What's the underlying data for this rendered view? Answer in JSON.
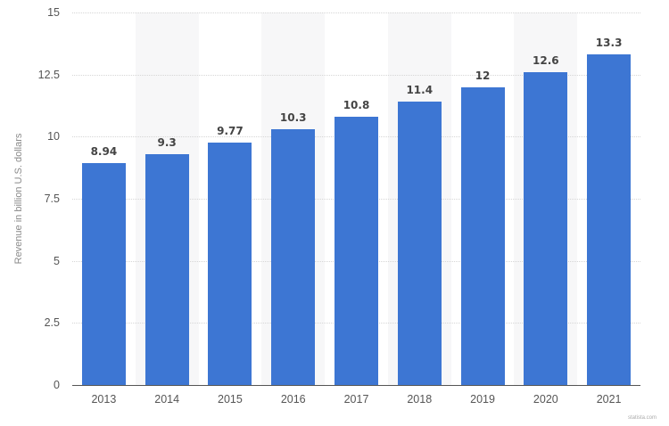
{
  "chart_data": {
    "type": "bar",
    "title": "",
    "xlabel": "",
    "ylabel": "Revenue in billion U.S. dollars",
    "categories": [
      "2013",
      "2014",
      "2015",
      "2016",
      "2017",
      "2018",
      "2019",
      "2020",
      "2021"
    ],
    "values": [
      8.94,
      9.3,
      9.77,
      10.3,
      10.8,
      11.4,
      12,
      12.6,
      13.3
    ],
    "value_labels": [
      "8.94",
      "9.3",
      "9.77",
      "10.3",
      "10.8",
      "11.4",
      "12",
      "12.6",
      "13.3"
    ],
    "ylim": [
      0,
      15
    ],
    "yticks": [
      0,
      2.5,
      5,
      7.5,
      10,
      12.5,
      15
    ],
    "ytick_labels": [
      "0",
      "2.5",
      "5",
      "7.5",
      "10",
      "12.5",
      "15"
    ],
    "grid": true,
    "legend": null,
    "bar_color": "#3d76d3",
    "band_color": "#f7f7f8"
  },
  "credit": "statista.com"
}
